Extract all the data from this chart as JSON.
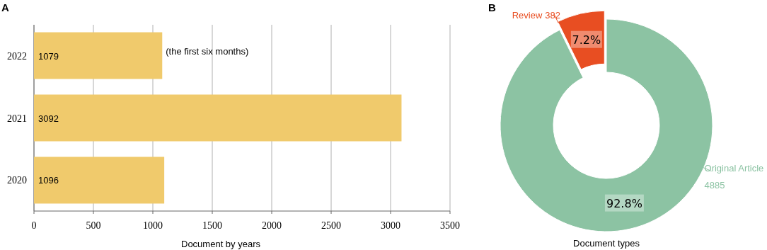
{
  "chart_data": [
    {
      "type": "bar",
      "title": "A",
      "xlabel": "Document by years",
      "orientation": "horizontal",
      "categories": [
        "2022",
        "2021",
        "2020"
      ],
      "values": [
        1079,
        3092,
        1096
      ],
      "color": "#f0ca6c",
      "xlim": [
        0,
        3500
      ],
      "xticks": [
        0,
        500,
        1000,
        1500,
        2000,
        2500,
        3000,
        3500
      ],
      "grid": "x",
      "data_labels": true,
      "annotations": [
        {
          "text": "(the first six months)",
          "x": 1079,
          "y": "2022"
        }
      ]
    },
    {
      "type": "donut",
      "title": "B",
      "xlabel": "Document types",
      "categories": [
        "Review",
        "Original Article"
      ],
      "values": [
        382,
        4885
      ],
      "colors": [
        "#e84e22",
        "#8cc3a3"
      ],
      "data_labels": true,
      "annotations": [
        {
          "text": "7.2%",
          "x": "Review"
        },
        {
          "text": "92.8%",
          "x": "Original Article"
        }
      ]
    }
  ]
}
